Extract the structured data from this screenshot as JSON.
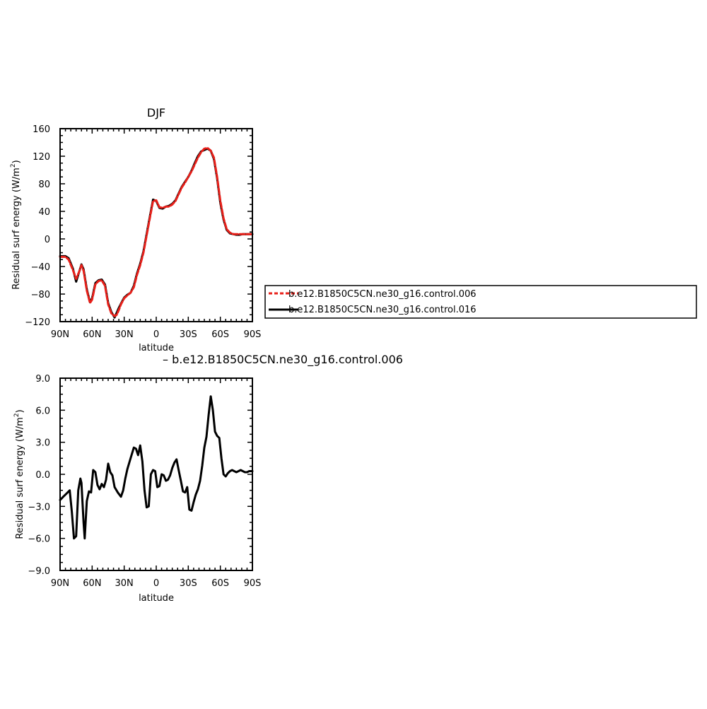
{
  "chart_data": [
    {
      "type": "line",
      "title": "DJF",
      "xlabel": "latitude",
      "ylabel": "Residual surf energy (W/m²)",
      "ylabel_main": "Residual surf energy (W/m",
      "ylabel_sup": "2",
      "ylabel_end": ")",
      "xlim": [
        -90,
        90
      ],
      "ylim": [
        -120,
        160
      ],
      "xticks": [
        -90,
        -60,
        -30,
        0,
        30,
        60,
        90
      ],
      "xtick_labels": [
        "90N",
        "60N",
        "30N",
        "0",
        "30S",
        "60S",
        "90S"
      ],
      "yticks": [
        -120,
        -80,
        -40,
        0,
        40,
        80,
        120,
        160
      ],
      "ytick_labels": [
        "−120",
        "−80",
        "−40",
        "0",
        "40",
        "80",
        "120",
        "160"
      ],
      "legend_position": "right",
      "series": [
        {
          "name": "b.e12.B1850C5CN.ne30_g16.control.006",
          "color": "#e8201a",
          "dashed": true,
          "x": [
            -90,
            -85,
            -82,
            -78,
            -75,
            -72,
            -70,
            -68,
            -65,
            -62,
            -60,
            -57,
            -54,
            -51,
            -48,
            -45,
            -42,
            -39,
            -37,
            -35,
            -33,
            -30,
            -27,
            -24,
            -21,
            -18,
            -15,
            -12,
            -9,
            -6,
            -3,
            0,
            3,
            6,
            9,
            12,
            15,
            18,
            21,
            24,
            27,
            30,
            33,
            36,
            39,
            42,
            45,
            48,
            51,
            54,
            57,
            60,
            63,
            66,
            69,
            72,
            75,
            78,
            81,
            84,
            87,
            90
          ],
          "values": [
            -26,
            -26,
            -30,
            -45,
            -58,
            -47,
            -38,
            -46,
            -75,
            -93,
            -88,
            -66,
            -61,
            -60,
            -68,
            -95,
            -108,
            -112,
            -110,
            -103,
            -95,
            -86,
            -82,
            -78,
            -70,
            -52,
            -38,
            -20,
            5,
            30,
            55,
            56,
            46,
            45,
            47,
            47,
            50,
            55,
            65,
            75,
            82,
            90,
            98,
            108,
            118,
            126,
            131,
            132,
            128,
            118,
            90,
            55,
            30,
            14,
            9,
            7,
            7,
            7,
            7,
            7,
            7,
            7
          ]
        },
        {
          "name": "b.e12.B1850C5CN.ne30_g16.control.016",
          "color": "#000000",
          "dashed": false,
          "x": [
            -90,
            -85,
            -82,
            -78,
            -75,
            -72,
            -70,
            -68,
            -65,
            -62,
            -60,
            -57,
            -54,
            -51,
            -48,
            -45,
            -42,
            -39,
            -37,
            -35,
            -33,
            -30,
            -27,
            -24,
            -21,
            -18,
            -15,
            -12,
            -9,
            -6,
            -3,
            0,
            3,
            6,
            9,
            12,
            15,
            18,
            21,
            24,
            27,
            30,
            33,
            36,
            39,
            42,
            45,
            48,
            51,
            54,
            57,
            60,
            63,
            66,
            69,
            72,
            75,
            78,
            81,
            84,
            87,
            90
          ],
          "values": [
            -25,
            -25,
            -28,
            -43,
            -62,
            -47,
            -37,
            -44,
            -73,
            -92,
            -86,
            -64,
            -60,
            -59,
            -66,
            -93,
            -106,
            -114,
            -107,
            -100,
            -94,
            -85,
            -81,
            -78,
            -68,
            -50,
            -36,
            -18,
            7,
            32,
            57,
            55,
            45,
            44,
            47,
            48,
            51,
            56,
            66,
            76,
            83,
            90,
            99,
            110,
            120,
            127,
            129,
            131,
            128,
            116,
            88,
            52,
            28,
            13,
            8,
            7,
            6,
            6,
            7,
            7,
            7,
            7
          ]
        }
      ]
    },
    {
      "type": "line",
      "title": "– b.e12.B1850C5CN.ne30_g16.control.006",
      "xlabel": "latitude",
      "ylabel": "Residual surf energy (W/m²)",
      "ylabel_main": "Residual surf energy (W/m",
      "ylabel_sup": "2",
      "ylabel_end": ")",
      "xlim": [
        -90,
        90
      ],
      "ylim": [
        -9,
        9
      ],
      "xticks": [
        -90,
        -60,
        -30,
        0,
        30,
        60,
        90
      ],
      "xtick_labels": [
        "90N",
        "60N",
        "30N",
        "0",
        "30S",
        "60S",
        "90S"
      ],
      "yticks": [
        -9,
        -6,
        -3,
        0,
        3,
        6,
        9
      ],
      "ytick_labels": [
        "−9.0",
        "−6.0",
        "−3.0",
        "0.0",
        "3.0",
        "6.0",
        "9.0"
      ],
      "series": [
        {
          "color": "#000000",
          "dashed": false,
          "x": [
            -90,
            -87,
            -84,
            -81,
            -79,
            -77,
            -75,
            -73,
            -71,
            -70,
            -68,
            -67,
            -65,
            -63,
            -61,
            -59,
            -57,
            -55,
            -53,
            -51,
            -49,
            -47,
            -45,
            -43,
            -41,
            -39,
            -36,
            -33,
            -31,
            -29,
            -27,
            -24,
            -21,
            -19,
            -17,
            -15,
            -13,
            -11,
            -9,
            -7,
            -5,
            -3,
            -1,
            1,
            3,
            5,
            7,
            9,
            11,
            13,
            15,
            17,
            19,
            21,
            23,
            25,
            27,
            29,
            31,
            33,
            35,
            37,
            39,
            41,
            43,
            45,
            47,
            49,
            51,
            53,
            55,
            57,
            59,
            61,
            63,
            65,
            67,
            69,
            71,
            73,
            75,
            77,
            79,
            81,
            83,
            85,
            87,
            90
          ],
          "values": [
            -2.4,
            -2.1,
            -1.8,
            -1.5,
            -3.5,
            -6.0,
            -5.8,
            -1.5,
            -0.4,
            -0.8,
            -4.5,
            -6.0,
            -2.5,
            -1.6,
            -1.7,
            0.4,
            0.2,
            -1.0,
            -1.4,
            -0.9,
            -1.2,
            -0.5,
            1.0,
            0.2,
            -0.1,
            -1.2,
            -1.7,
            -2.1,
            -1.5,
            -0.4,
            0.5,
            1.5,
            2.5,
            2.4,
            1.8,
            2.7,
            1.2,
            -1.5,
            -3.1,
            -3.0,
            0.0,
            0.4,
            0.3,
            -1.2,
            -1.1,
            0.0,
            -0.1,
            -0.6,
            -0.5,
            -0.1,
            0.6,
            1.1,
            1.4,
            0.4,
            -0.6,
            -1.6,
            -1.7,
            -1.2,
            -3.3,
            -3.4,
            -2.6,
            -1.9,
            -1.4,
            -0.6,
            0.8,
            2.5,
            3.5,
            5.5,
            7.3,
            6.0,
            4.0,
            3.6,
            3.4,
            1.5,
            0.0,
            -0.2,
            0.1,
            0.3,
            0.4,
            0.3,
            0.2,
            0.3,
            0.4,
            0.3,
            0.2,
            0.2,
            0.3,
            0.3
          ]
        }
      ]
    }
  ]
}
